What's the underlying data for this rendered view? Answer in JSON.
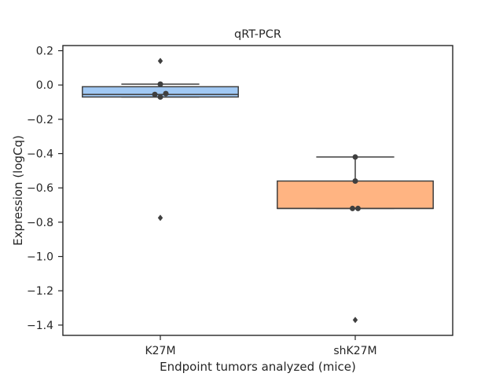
{
  "chart_data": {
    "type": "box",
    "title": "qRT-PCR",
    "xlabel": "Endpoint tumors analyzed (mice)",
    "ylabel": "Expression (logCq)",
    "categories": [
      "K27M",
      "shK27M"
    ],
    "ylim": [
      -1.46,
      0.23
    ],
    "yticks": [
      0.2,
      0.0,
      -0.2,
      -0.4,
      -0.6,
      -0.8,
      -1.0,
      -1.2,
      -1.4
    ],
    "ytick_labels": [
      "0.2",
      "0.0",
      "−0.2",
      "−0.4",
      "−0.6",
      "−0.8",
      "−1.0",
      "−1.2",
      "−1.4"
    ],
    "grid": false,
    "boxes": [
      {
        "category": "K27M",
        "color": "#a1c9f4",
        "whisker_low": -0.07,
        "q1": -0.07,
        "median": -0.055,
        "q3": -0.01,
        "whisker_high": 0.005,
        "outliers": [
          0.14,
          -0.775
        ],
        "points": [
          0.005,
          -0.05,
          -0.055,
          -0.07
        ]
      },
      {
        "category": "shK27M",
        "color": "#ffb482",
        "whisker_low": -0.72,
        "q1": -0.72,
        "median": -0.72,
        "q3": -0.56,
        "whisker_high": -0.42,
        "outliers": [
          -1.37
        ],
        "points": [
          -0.42,
          -0.56,
          -0.72,
          -0.72
        ]
      }
    ]
  }
}
